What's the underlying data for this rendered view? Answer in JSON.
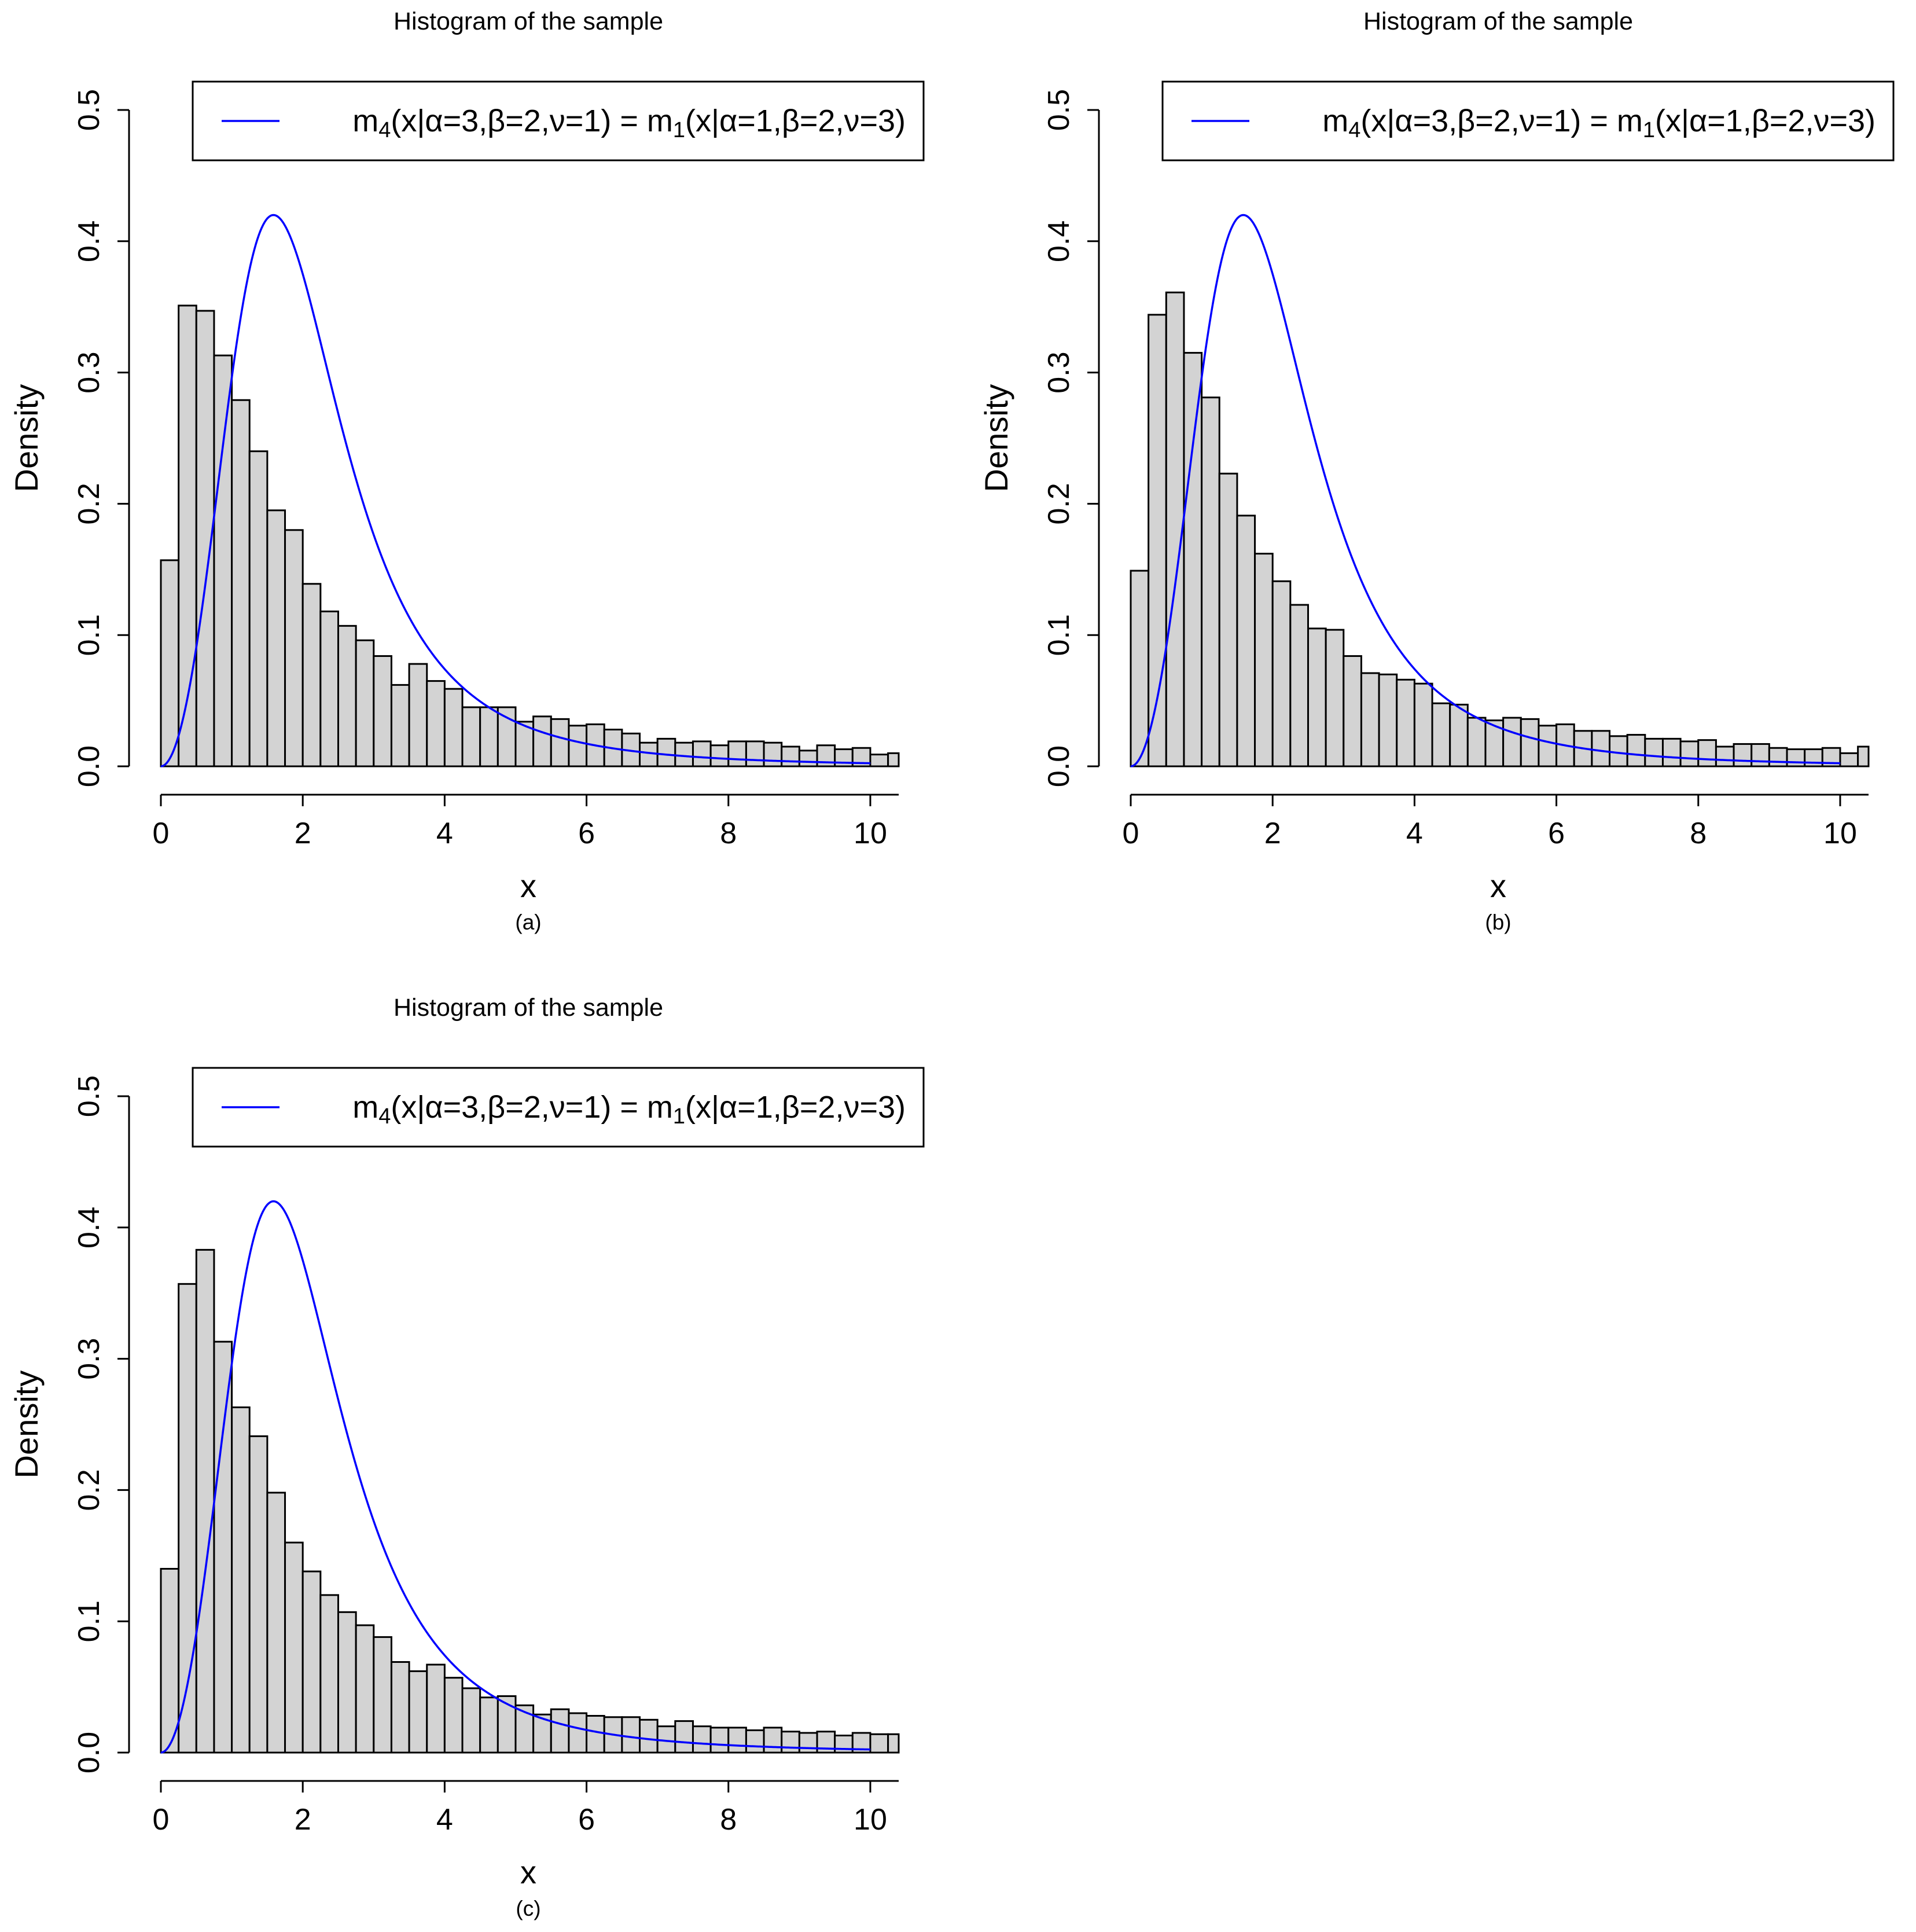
{
  "figure": {
    "curve_color": "#0000ff",
    "bar_fill": "#d3d3d3",
    "bar_stroke": "#000000"
  },
  "chart_data": [
    {
      "type": "bar",
      "title": "Histogram of the sample",
      "xlabel": "x",
      "ylabel": "Density",
      "caption": "(a)",
      "xlim": [
        0,
        10.4
      ],
      "ylim": [
        0,
        0.5
      ],
      "xticks": [
        "0",
        "2",
        "4",
        "6",
        "8",
        "10"
      ],
      "yticks": [
        "0.0",
        "0.1",
        "0.2",
        "0.3",
        "0.4",
        "0.5"
      ],
      "legend": {
        "position": "top-right",
        "m": "m",
        "sub1": "4",
        "args1": "(x|α=3,β=2,ν=1) = ",
        "sub2": "1",
        "args2": "(x|α=1,β=2,ν=3)"
      },
      "bin_width": 0.25,
      "values": [
        0.157,
        0.351,
        0.347,
        0.313,
        0.279,
        0.24,
        0.195,
        0.18,
        0.139,
        0.118,
        0.107,
        0.096,
        0.084,
        0.062,
        0.078,
        0.065,
        0.059,
        0.045,
        0.045,
        0.045,
        0.034,
        0.038,
        0.036,
        0.031,
        0.032,
        0.028,
        0.025,
        0.018,
        0.021,
        0.018,
        0.019,
        0.016,
        0.019,
        0.019,
        0.018,
        0.015,
        0.012,
        0.016,
        0.013,
        0.014,
        0.009,
        0.01
      ],
      "curve": {
        "name": "m4(x|α=3,β=2,ν=1) = m1(x|α=1,β=2,ν=3)",
        "alpha": 3,
        "beta": 2,
        "nu": 1
      }
    },
    {
      "type": "bar",
      "title": "Histogram of the sample",
      "xlabel": "x",
      "ylabel": "Density",
      "caption": "(b)",
      "xlim": [
        0,
        10.4
      ],
      "ylim": [
        0,
        0.5
      ],
      "xticks": [
        "0",
        "2",
        "4",
        "6",
        "8",
        "10"
      ],
      "yticks": [
        "0.0",
        "0.1",
        "0.2",
        "0.3",
        "0.4",
        "0.5"
      ],
      "legend": {
        "position": "top-right",
        "m": "m",
        "sub1": "4",
        "args1": "(x|α=3,β=2,ν=1) = ",
        "sub2": "1",
        "args2": "(x|α=1,β=2,ν=3)"
      },
      "bin_width": 0.25,
      "values": [
        0.149,
        0.344,
        0.361,
        0.315,
        0.281,
        0.223,
        0.191,
        0.162,
        0.141,
        0.123,
        0.105,
        0.104,
        0.084,
        0.071,
        0.07,
        0.066,
        0.063,
        0.048,
        0.047,
        0.037,
        0.035,
        0.037,
        0.036,
        0.031,
        0.032,
        0.027,
        0.027,
        0.023,
        0.024,
        0.021,
        0.021,
        0.019,
        0.02,
        0.015,
        0.017,
        0.017,
        0.014,
        0.013,
        0.013,
        0.014,
        0.01,
        0.015
      ],
      "curve": {
        "name": "m4(x|α=3,β=2,ν=1) = m1(x|α=1,β=2,ν=3)",
        "alpha": 3,
        "beta": 2,
        "nu": 1
      }
    },
    {
      "type": "bar",
      "title": "Histogram of the sample",
      "xlabel": "x",
      "ylabel": "Density",
      "caption": "(c)",
      "xlim": [
        0,
        10.4
      ],
      "ylim": [
        0,
        0.5
      ],
      "xticks": [
        "0",
        "2",
        "4",
        "6",
        "8",
        "10"
      ],
      "yticks": [
        "0.0",
        "0.1",
        "0.2",
        "0.3",
        "0.4",
        "0.5"
      ],
      "legend": {
        "position": "top-right",
        "m": "m",
        "sub1": "4",
        "args1": "(x|α=3,β=2,ν=1) = ",
        "sub2": "1",
        "args2": "(x|α=1,β=2,ν=3)"
      },
      "bin_width": 0.25,
      "values": [
        0.14,
        0.357,
        0.383,
        0.313,
        0.263,
        0.241,
        0.198,
        0.16,
        0.138,
        0.12,
        0.107,
        0.097,
        0.088,
        0.069,
        0.062,
        0.067,
        0.057,
        0.049,
        0.042,
        0.043,
        0.036,
        0.029,
        0.033,
        0.03,
        0.028,
        0.027,
        0.027,
        0.025,
        0.02,
        0.024,
        0.02,
        0.019,
        0.019,
        0.017,
        0.019,
        0.016,
        0.015,
        0.016,
        0.013,
        0.015,
        0.014,
        0.014
      ],
      "curve": {
        "name": "m4(x|α=3,β=2,ν=1) = m1(x|α=1,β=2,ν=3)",
        "alpha": 3,
        "beta": 2,
        "nu": 1
      }
    }
  ]
}
